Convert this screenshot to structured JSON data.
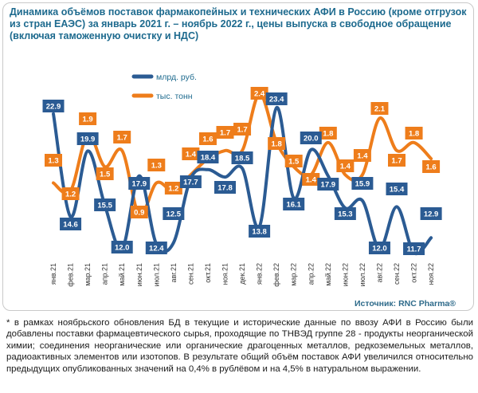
{
  "title": "Динамика объёмов поставок фармакопейных и технических АФИ в Россию (кроме отгрузок из стран ЕАЭС) за январь 2021 г. – ноябрь 2022 г., цены выпуска в свободное обращение (включая таможенную очистку и НДС)",
  "source": "Источник: RNC Pharma®",
  "footnote": "* в рамках ноябрьского обновления БД в текущие и исторические данные по ввозу АФИ в Россию были добавлены поставки фармацевтического сырья, проходящие по ТНВЭД группе 28 - продукты неорганической химии; соединения неорганические или органические драгоценных металлов, редкоземельных металлов, радиоактивных элементов или изотопов. В результате общий объём поставок АФИ увеличился относительно предыдущих опубликованных значений на 0,4% в рублёвом и на 4,5% в натуральном выражении.",
  "colors": {
    "rub": "#2b5b93",
    "ton": "#ee7d1b",
    "title": "#1d6a8e"
  },
  "chart_data": {
    "type": "line",
    "categories": [
      "янв.21",
      "фев.21",
      "мар.21",
      "апр.21",
      "май.21",
      "июн.21",
      "июл.21",
      "авг.21",
      "сен.21",
      "окт.21",
      "ноя.21",
      "дек.21",
      "янв.22",
      "фев.22",
      "мар.22",
      "апр.22",
      "май.22",
      "июн.22",
      "июл.22",
      "авг.22",
      "сен.22",
      "окт.22",
      "ноя.22"
    ],
    "series": [
      {
        "name": "млрд. руб.",
        "values": [
          22.9,
          14.6,
          19.9,
          15.5,
          12.0,
          17.9,
          12.4,
          12.5,
          17.7,
          18.4,
          17.8,
          null,
          13.8,
          23.4,
          16.1,
          20.0,
          17.9,
          15.3,
          15.9,
          12.0,
          15.4,
          11.7,
          12.9
        ],
        "labels": [
          "22.9",
          "14.6",
          "19.9",
          "15.5",
          "12.0",
          "17.9",
          "12.4",
          "12.5",
          "17.7",
          "18.4",
          "17.8",
          "18.5",
          "13.8",
          "23.4",
          "16.1",
          "20.0",
          "17.9",
          "15.3",
          "15.9",
          "12.0",
          "15.4",
          "11.7",
          "12.9"
        ]
      },
      {
        "name": "тыс. тонн",
        "values": [
          1.3,
          1.2,
          1.9,
          1.5,
          1.7,
          0.9,
          1.3,
          1.2,
          1.4,
          1.6,
          1.7,
          1.7,
          2.4,
          1.8,
          1.5,
          1.4,
          1.8,
          1.4,
          1.4,
          2.1,
          1.7,
          1.8,
          1.6
        ],
        "labels": [
          "1.3",
          "1.2",
          "1.9",
          "1.5",
          "1.7",
          "0.9",
          "1.3",
          "1.2",
          "1.4",
          "1.6",
          "1.7",
          "1.7",
          "2.4",
          "1.8",
          "1.5",
          "1.4",
          "1.8",
          "1.4",
          "1.4",
          "2.1",
          "1.7",
          "1.8",
          "1.6"
        ]
      }
    ],
    "legend": "top-left",
    "grid": false
  }
}
